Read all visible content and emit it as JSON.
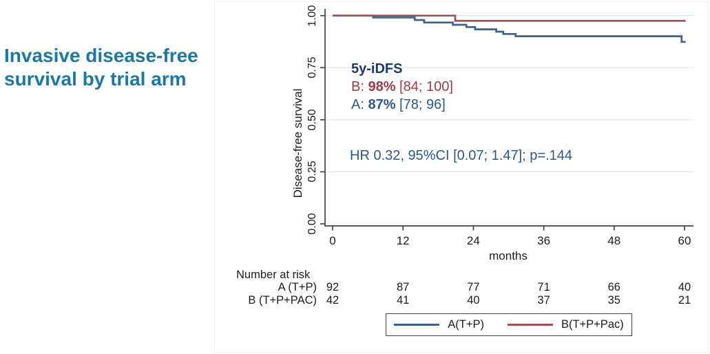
{
  "slide": {
    "title_line1": "Invasive disease-free",
    "title_line2": "survival by trial arm"
  },
  "colors": {
    "title": "#1879a9",
    "navy": "#1e3a68",
    "maroon_text": "#9e3b44",
    "steel_text": "#2b588c",
    "line_a": "#3b628e",
    "line_b": "#9d4f54",
    "grid": "#dce7f0",
    "axis": "#444444"
  },
  "chart_data": {
    "type": "line",
    "subtype": "kaplan-meier-step",
    "title": "Invasive disease-free survival by trial arm",
    "xlabel": "months",
    "ylabel": "Disease-free survival",
    "xticks": [
      0,
      12,
      24,
      36,
      48,
      60
    ],
    "yticks": [
      "1.00",
      "0.75",
      "0.50",
      "0.25",
      "0.00"
    ],
    "xlim": [
      0,
      61.5
    ],
    "ylim": [
      0,
      1
    ],
    "grid": "horizontal-light",
    "legend_position": "bottom",
    "series": [
      {
        "name": "A(T+P)",
        "color": "#3b628e",
        "points": [
          [
            0,
            1.0
          ],
          [
            6.9,
            0.991
          ],
          [
            14.0,
            0.979
          ],
          [
            15.6,
            0.967
          ],
          [
            20.5,
            0.956
          ],
          [
            22.8,
            0.945
          ],
          [
            24.3,
            0.934
          ],
          [
            27.9,
            0.923
          ],
          [
            29.1,
            0.912
          ],
          [
            31.2,
            0.901
          ],
          [
            59.5,
            0.874
          ],
          [
            60.2,
            0.874
          ]
        ]
      },
      {
        "name": "B(T+P+Pac)",
        "color": "#9d4f54",
        "points": [
          [
            0,
            1.0
          ],
          [
            20.9,
            0.975
          ],
          [
            60.2,
            0.975
          ]
        ]
      }
    ]
  },
  "annotation": {
    "heading": "5y-iDFS",
    "b": {
      "prefix": "B: ",
      "value": "98%",
      "ci": " [84; 100]"
    },
    "a": {
      "prefix": "A: ",
      "value": "87%",
      "ci": " [78; 96]"
    },
    "hr": "HR 0.32, 95%CI [0.07; 1.47]; p=.144"
  },
  "risk_table": {
    "heading": "Number at risk",
    "columns": [
      0,
      12,
      24,
      36,
      48,
      60
    ],
    "rows": [
      {
        "label": "A (T+P)",
        "values": [
          92,
          87,
          77,
          71,
          66,
          40
        ]
      },
      {
        "label": "B (T+P+PAC)",
        "values": [
          42,
          41,
          40,
          37,
          35,
          21
        ]
      }
    ]
  },
  "legend": {
    "items": [
      {
        "label": "A(T+P)",
        "color": "#3b628e"
      },
      {
        "label": "B(T+P+Pac)",
        "color": "#9d4f54"
      }
    ]
  }
}
